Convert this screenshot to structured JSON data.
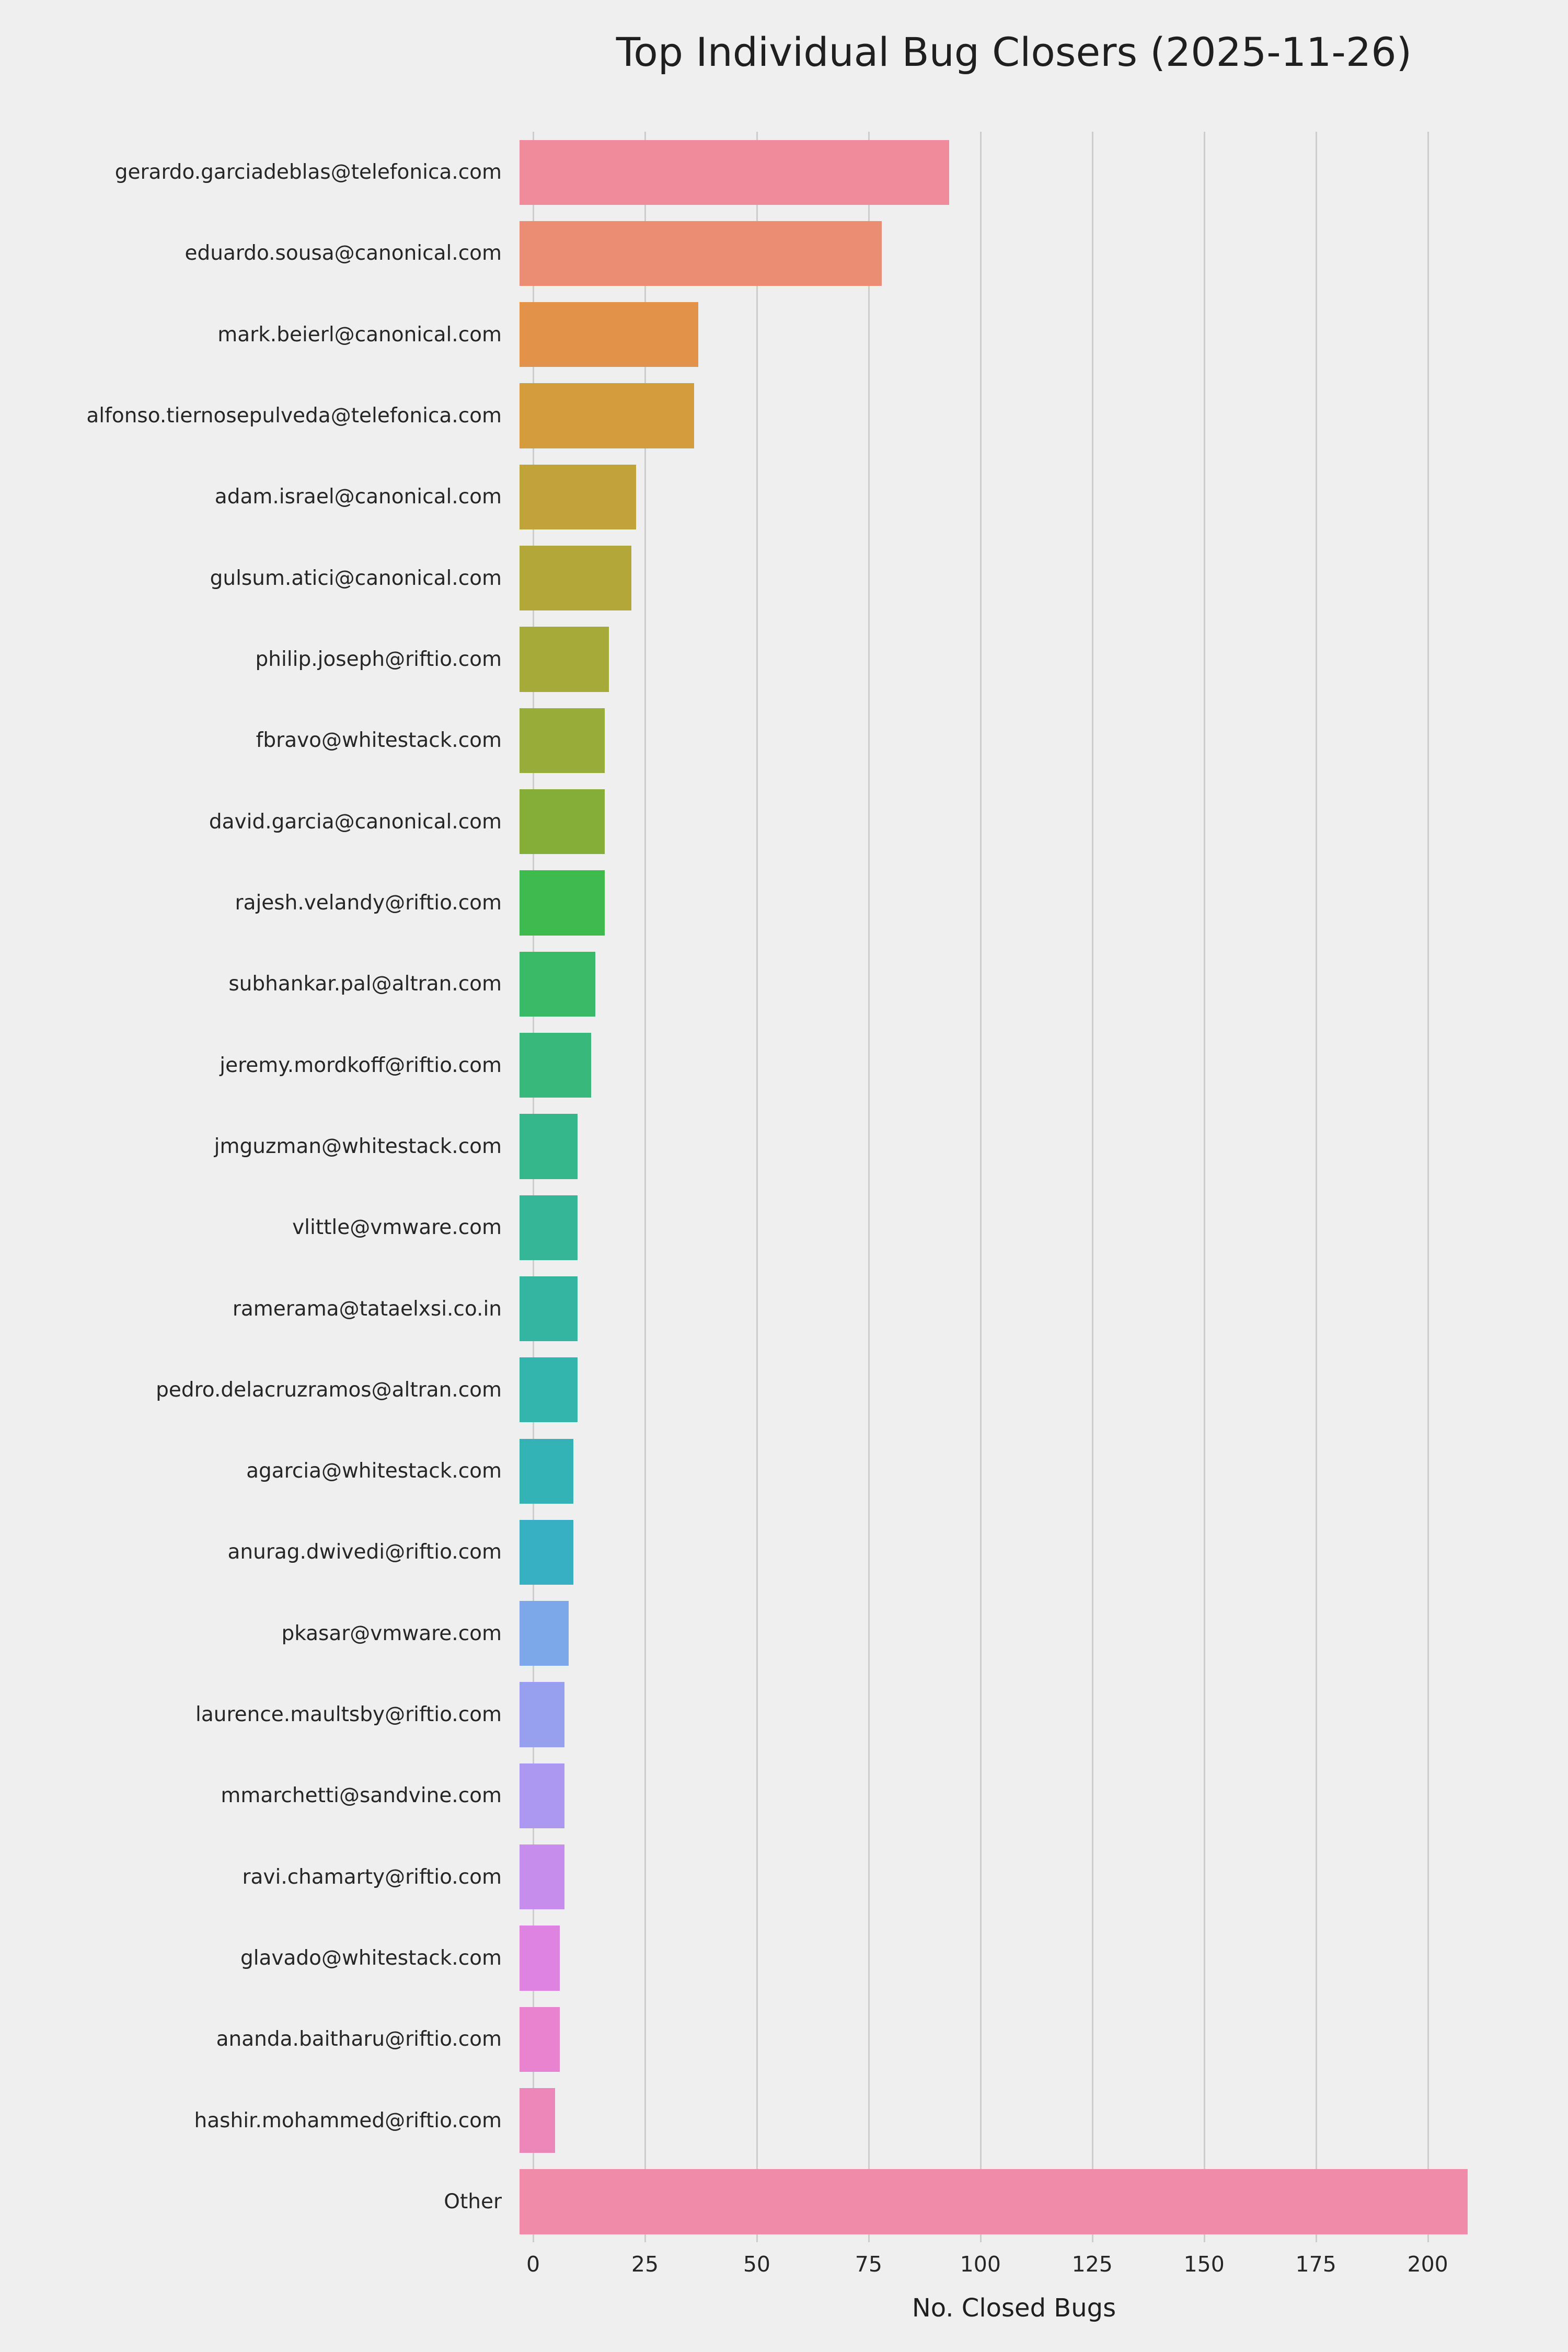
{
  "title": "Top Individual Bug Closers (2025-11-26)",
  "chart_data": {
    "type": "bar",
    "orientation": "horizontal",
    "title": "Top Individual Bug Closers (2025-11-26)",
    "xlabel": "No. Closed Bugs",
    "ylabel": "",
    "xlim": [
      0,
      215
    ],
    "xticks": [
      0,
      25,
      50,
      75,
      100,
      125,
      150,
      175,
      200
    ],
    "grid": true,
    "legend": false,
    "background_color": "#efefef",
    "gridline_color": "#cdcdcd",
    "text_color": "#262626",
    "categories": [
      "gerardo.garciadeblas@telefonica.com",
      "eduardo.sousa@canonical.com",
      "mark.beierl@canonical.com",
      "alfonso.tiernosepulveda@telefonica.com",
      "adam.israel@canonical.com",
      "gulsum.atici@canonical.com",
      "philip.joseph@riftio.com",
      "fbravo@whitestack.com",
      "david.garcia@canonical.com",
      "rajesh.velandy@riftio.com",
      "subhankar.pal@altran.com",
      "jeremy.mordkoff@riftio.com",
      "jmguzman@whitestack.com",
      "vlittle@vmware.com",
      "ramerama@tataelxsi.co.in",
      "pedro.delacruzramos@altran.com",
      "agarcia@whitestack.com",
      "anurag.dwivedi@riftio.com",
      "pkasar@vmware.com",
      "laurence.maultsby@riftio.com",
      "mmarchetti@sandvine.com",
      "ravi.chamarty@riftio.com",
      "glavado@whitestack.com",
      "ananda.baitharu@riftio.com",
      "hashir.mohammed@riftio.com",
      "Other"
    ],
    "values": [
      96,
      81,
      40,
      39,
      26,
      25,
      20,
      19,
      19,
      19,
      17,
      16,
      13,
      13,
      13,
      13,
      12,
      12,
      11,
      10,
      10,
      10,
      9,
      9,
      8,
      212
    ],
    "colors": [
      "#ef8b9a",
      "#ea8d73",
      "#e39349",
      "#d49c3d",
      "#c2a33b",
      "#b4a73a",
      "#a6aa39",
      "#97ac39",
      "#85ae38",
      "#3eba4e",
      "#3ab967",
      "#38b87a",
      "#36b78b",
      "#35b697",
      "#34b5a2",
      "#33b4ac",
      "#34b3b6",
      "#38b0c4",
      "#7ca7e8",
      "#97a0ee",
      "#ad98f1",
      "#c78ded",
      "#de83e2",
      "#e982cf",
      "#ed86b9",
      "#f08ba9"
    ]
  }
}
